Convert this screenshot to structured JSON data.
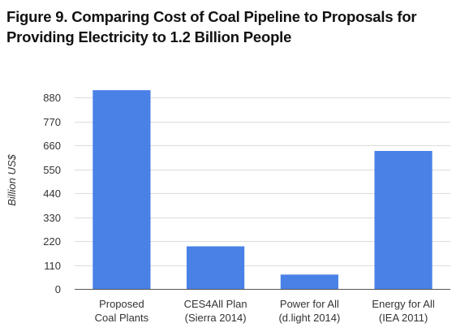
{
  "chart_data": {
    "type": "bar",
    "title_lines": [
      "Figure 9. Comparing Cost of Coal Pipeline to Proposals for",
      "Providing Electricity to 1.2 Billion People"
    ],
    "ylabel": "Billion US$",
    "xlabel": "",
    "categories": [
      [
        "Proposed",
        "Coal Plants"
      ],
      [
        "CES4All Plan",
        "(Sierra 2014)"
      ],
      [
        "Power for All",
        "(d.light 2014)"
      ],
      [
        "Energy for All",
        "(IEA 2011)"
      ]
    ],
    "values": [
      915,
      196,
      66,
      635
    ],
    "ylim": [
      0,
      990
    ],
    "yticks": [
      0,
      110,
      220,
      330,
      440,
      550,
      660,
      770,
      880
    ],
    "grid": true,
    "legend": "none",
    "bar_color": "#4a81e6"
  }
}
